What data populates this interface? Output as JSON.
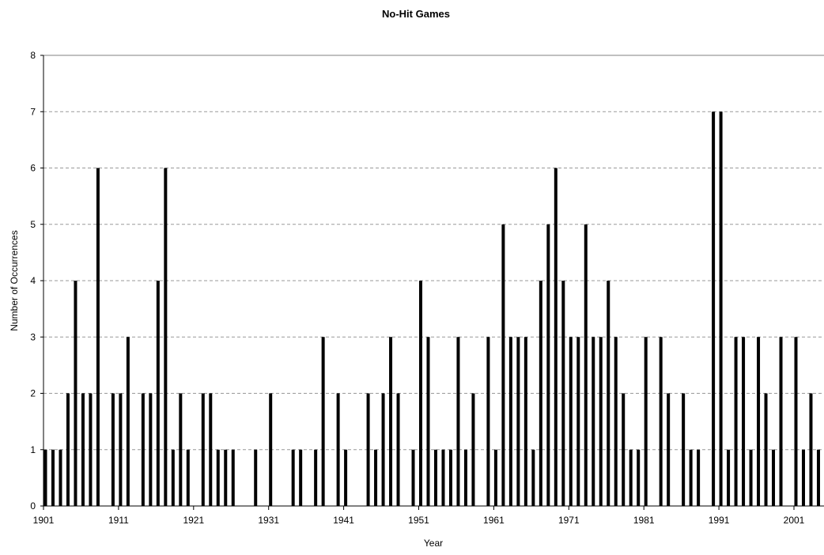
{
  "chart_data": {
    "type": "bar",
    "title": "No-Hit Games",
    "xlabel": "Year",
    "ylabel": "Number of Occurrences",
    "ylim": [
      0,
      8
    ],
    "yticks": [
      "0",
      "1",
      "2",
      "3",
      "4",
      "5",
      "6",
      "7",
      "8"
    ],
    "xtick_labels": [
      "1901",
      "1911",
      "1921",
      "1931",
      "1941",
      "1951",
      "1961",
      "1971",
      "1981",
      "1991",
      "2001"
    ],
    "grid": "horizontal dashed",
    "bar_color": "#000000",
    "grid_color": "#999999",
    "series": [
      {
        "x": [
          1901,
          1902,
          1903,
          1904,
          1905,
          1906,
          1907,
          1908,
          1909,
          1910,
          1911,
          1912,
          1913,
          1914,
          1915,
          1916,
          1917,
          1918,
          1919,
          1920,
          1921,
          1922,
          1923,
          1924,
          1925,
          1926,
          1927,
          1928,
          1929,
          1930,
          1931,
          1932,
          1933,
          1934,
          1935,
          1936,
          1937,
          1938,
          1939,
          1940,
          1941,
          1942,
          1943,
          1944,
          1945,
          1946,
          1947,
          1948,
          1949,
          1950,
          1951,
          1952,
          1953,
          1954,
          1955,
          1956,
          1957,
          1958,
          1959,
          1960,
          1961,
          1962,
          1963,
          1964,
          1965,
          1966,
          1967,
          1968,
          1969,
          1970,
          1971,
          1972,
          1973,
          1974,
          1975,
          1976,
          1977,
          1978,
          1979,
          1980,
          1981,
          1982,
          1983,
          1984,
          1985,
          1986,
          1987,
          1988,
          1989,
          1990,
          1991,
          1992,
          1993,
          1994,
          1995,
          1996,
          1997,
          1998,
          1999,
          2000,
          2001,
          2002,
          2003,
          2004
        ],
        "values": [
          1,
          1,
          1,
          2,
          4,
          2,
          2,
          6,
          0,
          2,
          2,
          3,
          0,
          2,
          2,
          4,
          6,
          1,
          2,
          1,
          0,
          2,
          2,
          1,
          1,
          1,
          0,
          0,
          1,
          0,
          2,
          0,
          0,
          1,
          1,
          0,
          1,
          3,
          0,
          2,
          1,
          0,
          0,
          2,
          1,
          2,
          3,
          2,
          0,
          1,
          4,
          3,
          1,
          1,
          1,
          3,
          1,
          2,
          0,
          3,
          1,
          5,
          3,
          3,
          3,
          1,
          4,
          5,
          6,
          4,
          3,
          3,
          5,
          3,
          3,
          4,
          3,
          2,
          1,
          1,
          3,
          0,
          3,
          2,
          0,
          2,
          1,
          1,
          0,
          7,
          7,
          1,
          3,
          3,
          1,
          3,
          2,
          1,
          3,
          0,
          3,
          1,
          2,
          1
        ]
      }
    ]
  }
}
